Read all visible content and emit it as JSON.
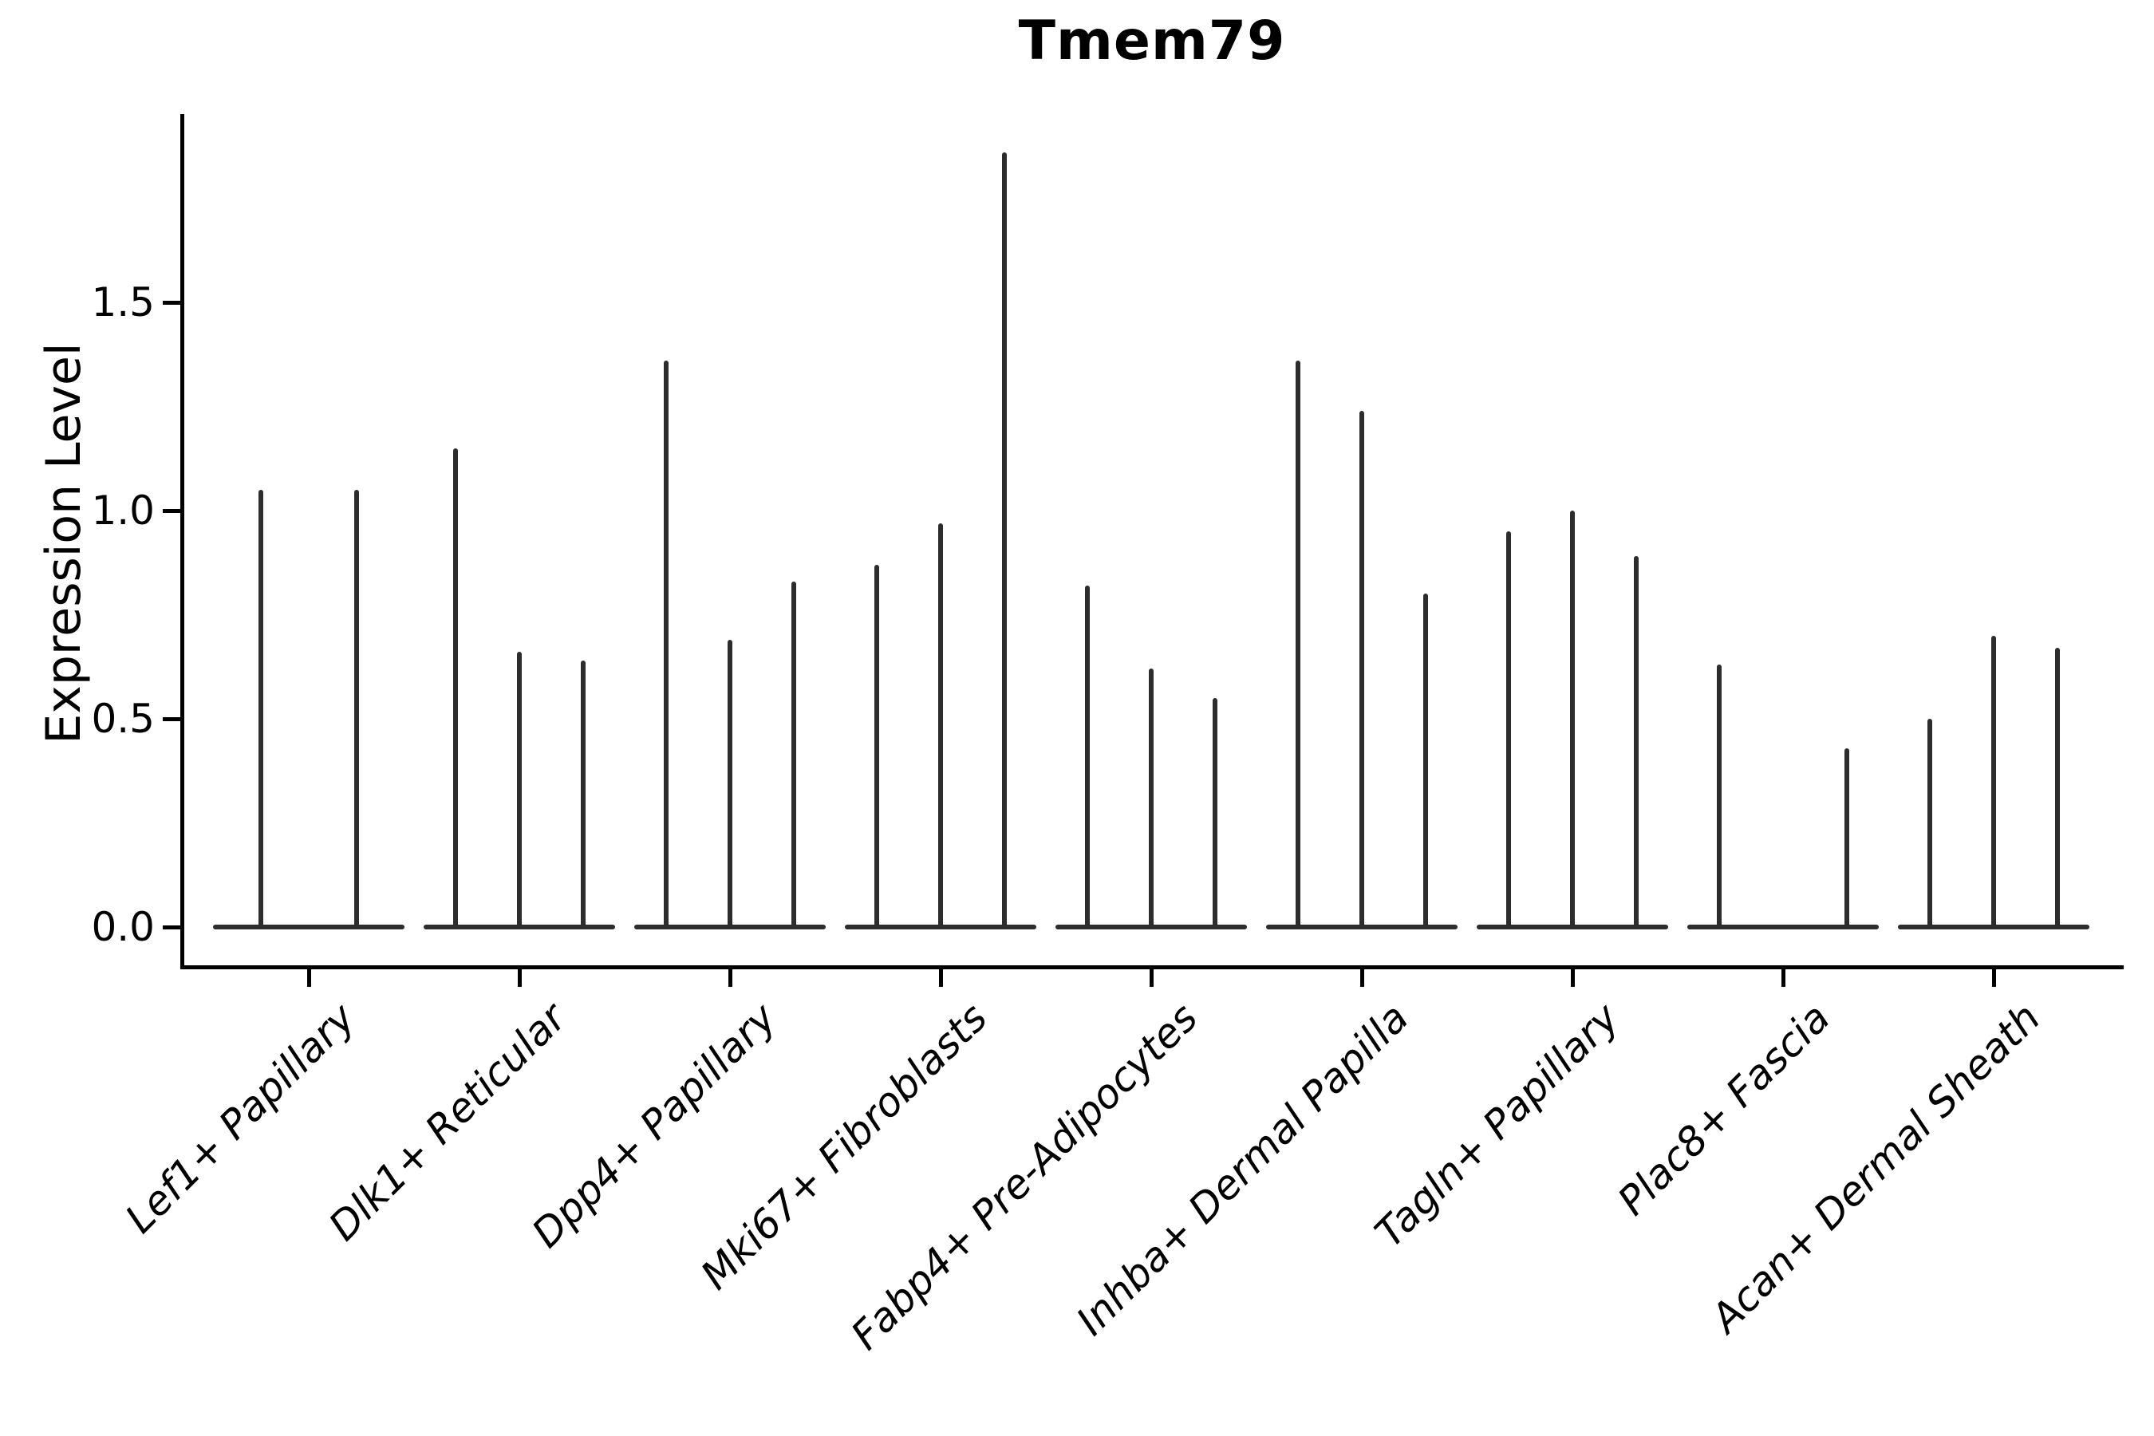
{
  "chart_data": {
    "type": "violin",
    "title": "Tmem79",
    "ylabel": "Expression Level",
    "xlabel": "",
    "legend_position": "none",
    "grid": false,
    "background_color": "#ffffff",
    "ink_color": "#2d2d2d",
    "axis_color": "#000000",
    "ylim": [
      -0.09,
      1.95
    ],
    "yticks": [
      {
        "value": 0.0,
        "label": "0.0"
      },
      {
        "value": 0.5,
        "label": "0.5"
      },
      {
        "value": 1.0,
        "label": "1.0"
      },
      {
        "value": 1.5,
        "label": "1.5"
      }
    ],
    "description": "Thin violin plot of Tmem79 expression per fibroblast cell-type group; each group holds 2-3 violins (samples) drawn as a flat base at 0 with a thin spike up to the maximum expression value.",
    "groups": [
      {
        "label": "Lef1+ Papillary",
        "violin_max_values": [
          1.05,
          1.05
        ]
      },
      {
        "label": "Dlk1+ Reticular",
        "violin_max_values": [
          1.15,
          0.66,
          0.64
        ]
      },
      {
        "label": "Dpp4+ Papillary",
        "violin_max_values": [
          1.36,
          0.69,
          0.83
        ]
      },
      {
        "label": "Mki67+ Fibroblasts",
        "violin_max_values": [
          0.87,
          0.97,
          1.86
        ]
      },
      {
        "label": "Fabp4+ Pre-Adipocytes",
        "violin_max_values": [
          0.82,
          0.62,
          0.55
        ]
      },
      {
        "label": "Inhba+ Dermal Papilla",
        "violin_max_values": [
          1.36,
          1.24,
          0.8
        ]
      },
      {
        "label": "Tagln+ Papillary",
        "violin_max_values": [
          0.95,
          1.0,
          0.89
        ]
      },
      {
        "label": "Plac8+ Fascia",
        "violin_max_values": [
          0.63,
          0,
          0.43
        ]
      },
      {
        "label": "Acan+ Dermal Sheath",
        "violin_max_values": [
          0.5,
          0.7,
          0.67
        ]
      }
    ]
  }
}
